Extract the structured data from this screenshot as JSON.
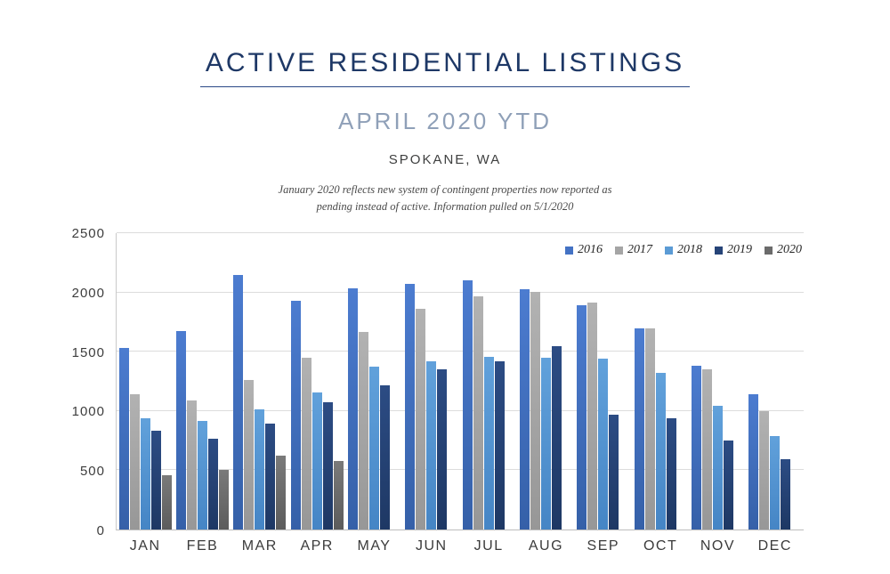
{
  "header": {
    "title": "ACTIVE RESIDENTIAL LISTINGS",
    "subtitle": "APRIL 2020 YTD",
    "location": "SPOKANE, WA",
    "note_line1": "January 2020 reflects new system of contingent properties now reported as",
    "note_line2": "pending instead of active.  Information pulled on 5/1/2020"
  },
  "colors": {
    "title_navy": "#1E3866",
    "subtitle_blue_gray": "#8FA0B8",
    "gridline": "#DCDCDC",
    "axis_line": "#BDBDBD",
    "axis_text": "#3D3D3D"
  },
  "chart_data": {
    "type": "bar",
    "title": "ACTIVE RESIDENTIAL LISTINGS — APRIL 2020 YTD — SPOKANE, WA",
    "xlabel": "",
    "ylabel": "",
    "ylim": [
      0,
      2500
    ],
    "y_ticks": [
      0,
      500,
      1000,
      1500,
      2000,
      2500
    ],
    "grid": true,
    "legend_position": "top-right-inside",
    "categories": [
      "JAN",
      "FEB",
      "MAR",
      "APR",
      "MAY",
      "JUN",
      "JUL",
      "AUG",
      "SEP",
      "OCT",
      "NOV",
      "DEC"
    ],
    "series": [
      {
        "name": "2016",
        "color": "#4472C4",
        "color_top": "#4C7CD0",
        "color_bottom": "#3560A8",
        "values": [
          1530,
          1675,
          2150,
          1930,
          2035,
          2075,
          2105,
          2030,
          1890,
          1700,
          1380,
          1145
        ]
      },
      {
        "name": "2017",
        "color": "#A5A5A5",
        "color_top": "#B2B2B2",
        "color_bottom": "#979797",
        "values": [
          1145,
          1085,
          1260,
          1450,
          1670,
          1865,
          1970,
          2005,
          1915,
          1700,
          1350,
          1000
        ]
      },
      {
        "name": "2018",
        "color": "#5B9BD5",
        "color_top": "#61A1DB",
        "color_bottom": "#4585C5",
        "values": [
          940,
          915,
          1010,
          1155,
          1375,
          1420,
          1460,
          1450,
          1440,
          1325,
          1040,
          790
        ]
      },
      {
        "name": "2019",
        "color": "#264478",
        "color_top": "#2C4C84",
        "color_bottom": "#1E3864",
        "values": [
          835,
          765,
          890,
          1075,
          1215,
          1350,
          1420,
          1545,
          970,
          940,
          750,
          590
        ]
      },
      {
        "name": "2020",
        "color": "#6B6B6B",
        "color_top": "#7A7A7A",
        "color_bottom": "#5C5C5C",
        "values": [
          455,
          500,
          620,
          580,
          null,
          null,
          null,
          null,
          null,
          null,
          null,
          null
        ]
      }
    ]
  }
}
